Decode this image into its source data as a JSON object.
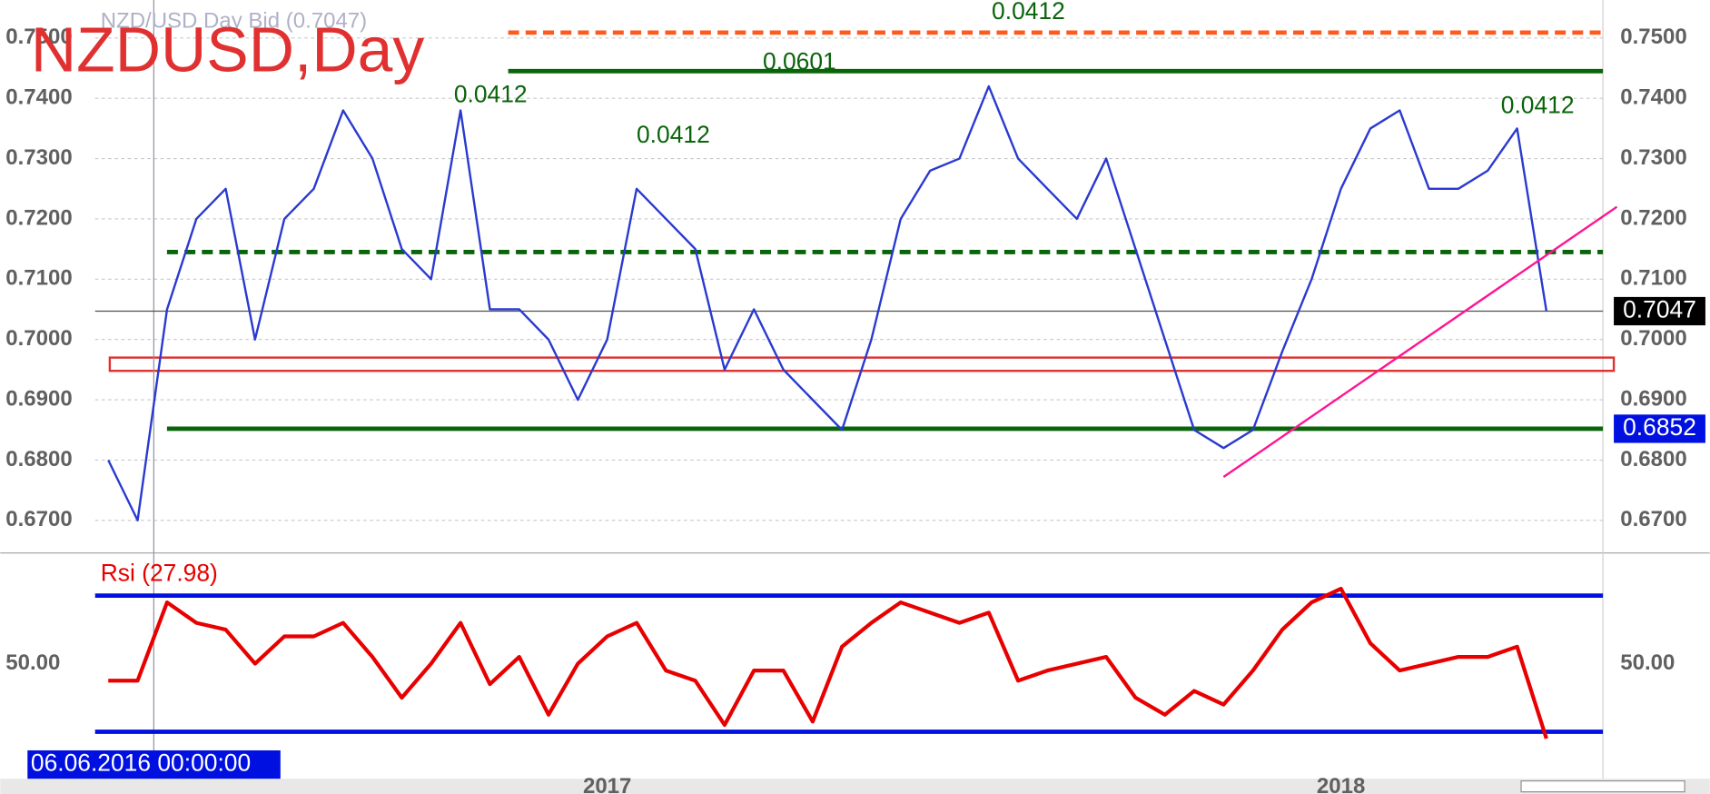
{
  "chart_data": [
    {
      "type": "line",
      "title": "NZDUSD,Day",
      "subtitle": "NZD/USD Day Bid (0.7047)",
      "x": [
        2016.32,
        2016.36,
        2016.4,
        2016.44,
        2016.48,
        2016.52,
        2016.56,
        2016.6,
        2016.64,
        2016.68,
        2016.72,
        2016.76,
        2016.8,
        2016.84,
        2016.88,
        2016.92,
        2016.96,
        2017.0,
        2017.04,
        2017.08,
        2017.12,
        2017.16,
        2017.2,
        2017.24,
        2017.28,
        2017.32,
        2017.36,
        2017.4,
        2017.44,
        2017.48,
        2017.52,
        2017.56,
        2017.6,
        2017.64,
        2017.68,
        2017.72,
        2017.76,
        2017.8,
        2017.84,
        2017.88,
        2017.92,
        2017.96,
        2018.0,
        2018.04,
        2018.08,
        2018.12,
        2018.16,
        2018.2,
        2018.24,
        2018.28
      ],
      "series": [
        {
          "color": "#2a3ad0",
          "values": [
            0.68,
            0.67,
            0.705,
            0.72,
            0.725,
            0.7,
            0.72,
            0.725,
            0.738,
            0.73,
            0.715,
            0.71,
            0.738,
            0.705,
            0.705,
            0.7,
            0.69,
            0.7,
            0.725,
            0.72,
            0.715,
            0.695,
            0.705,
            0.695,
            0.69,
            0.685,
            0.7,
            0.72,
            0.728,
            0.73,
            0.742,
            0.73,
            0.725,
            0.72,
            0.73,
            0.715,
            0.7,
            0.685,
            0.682,
            0.685,
            0.698,
            0.71,
            0.725,
            0.735,
            0.738,
            0.725,
            0.725,
            0.728,
            0.735,
            0.7047
          ]
        }
      ],
      "xlim": [
        2016.302,
        2018.357
      ],
      "xticks": [
        2017,
        2018
      ],
      "ylim": [
        0.6646,
        0.7563
      ],
      "yticks": [
        {
          "value": 0.67,
          "label": "0.6700"
        },
        {
          "value": 0.68,
          "label": "0.6800"
        },
        {
          "value": 0.69,
          "label": "0.6900"
        },
        {
          "value": 0.7,
          "label": "0.7000"
        },
        {
          "value": 0.71,
          "label": "0.7100"
        },
        {
          "value": 0.72,
          "label": "0.7200"
        },
        {
          "value": 0.73,
          "label": "0.7300"
        },
        {
          "value": 0.74,
          "label": "0.7400"
        },
        {
          "value": 0.75,
          "label": "0.7500"
        }
      ],
      "grid": true,
      "levels": [
        {
          "value": 0.7509,
          "x0": 2016.865,
          "color": "#ff5a1e",
          "dash": true
        },
        {
          "value": 0.7445,
          "x0": 2016.865,
          "color": "#0a640a",
          "dash": false
        },
        {
          "value": 0.7145,
          "x0": 2016.4,
          "color": "#0a640a",
          "dash": true
        },
        {
          "value": 0.6852,
          "x0": 2016.4,
          "color": "#0a640a",
          "dash": false
        }
      ],
      "zone": {
        "y": [
          0.6948,
          0.697
        ],
        "x0": 2016.322,
        "color": "#e03030"
      },
      "trendline": {
        "x": [
          2017.84,
          2018.376
        ],
        "y": [
          0.6772,
          0.722
        ],
        "color": "#ff1493"
      },
      "annotations": [
        {
          "text": "0.0412",
          "x": 2016.841,
          "y": 0.7404
        },
        {
          "text": "0.0412",
          "x": 2017.09,
          "y": 0.7337
        },
        {
          "text": "0.0601",
          "x": 2017.262,
          "y": 0.7458
        },
        {
          "text": "0.0412",
          "x": 2017.574,
          "y": 0.7542
        },
        {
          "text": "0.0412",
          "x": 2018.268,
          "y": 0.7386
        }
      ],
      "price_tags": [
        {
          "value": 0.7047,
          "color": "#000000"
        },
        {
          "value": 0.6852,
          "color": "#0010e0"
        }
      ],
      "crosshair": {
        "x": 2016.382,
        "label": "06.06.2016 00:00:00"
      }
    },
    {
      "type": "line",
      "title": "Rsi (27.98)",
      "x": [
        2016.32,
        2016.36,
        2016.4,
        2016.44,
        2016.48,
        2016.52,
        2016.56,
        2016.6,
        2016.64,
        2016.68,
        2016.72,
        2016.76,
        2016.8,
        2016.84,
        2016.88,
        2016.92,
        2016.96,
        2017.0,
        2017.04,
        2017.08,
        2017.12,
        2017.16,
        2017.2,
        2017.24,
        2017.28,
        2017.32,
        2017.36,
        2017.4,
        2017.44,
        2017.48,
        2017.52,
        2017.56,
        2017.6,
        2017.64,
        2017.68,
        2017.72,
        2017.76,
        2017.8,
        2017.84,
        2017.88,
        2017.92,
        2017.96,
        2018.0,
        2018.04,
        2018.08,
        2018.12,
        2018.16,
        2018.2,
        2018.24,
        2018.28
      ],
      "series": [
        {
          "color": "#e80000",
          "values": [
            45,
            45,
            68,
            62,
            60,
            50,
            58,
            58,
            62,
            52,
            40,
            50,
            62,
            44,
            52,
            35,
            50,
            58,
            62,
            48,
            45,
            32,
            48,
            48,
            33,
            55,
            62,
            68,
            65,
            62,
            65,
            45,
            48,
            50,
            52,
            40,
            35,
            42,
            38,
            48,
            60,
            68,
            72,
            56,
            48,
            50,
            52,
            52,
            55,
            28
          ]
        }
      ],
      "xlim": [
        2016.302,
        2018.357
      ],
      "ylim": [
        23.9,
        82.2
      ],
      "yticks": [
        {
          "value": 50,
          "label": "50.00"
        }
      ],
      "hlines": [
        70,
        30
      ],
      "hline_color": "#0010e0"
    }
  ]
}
